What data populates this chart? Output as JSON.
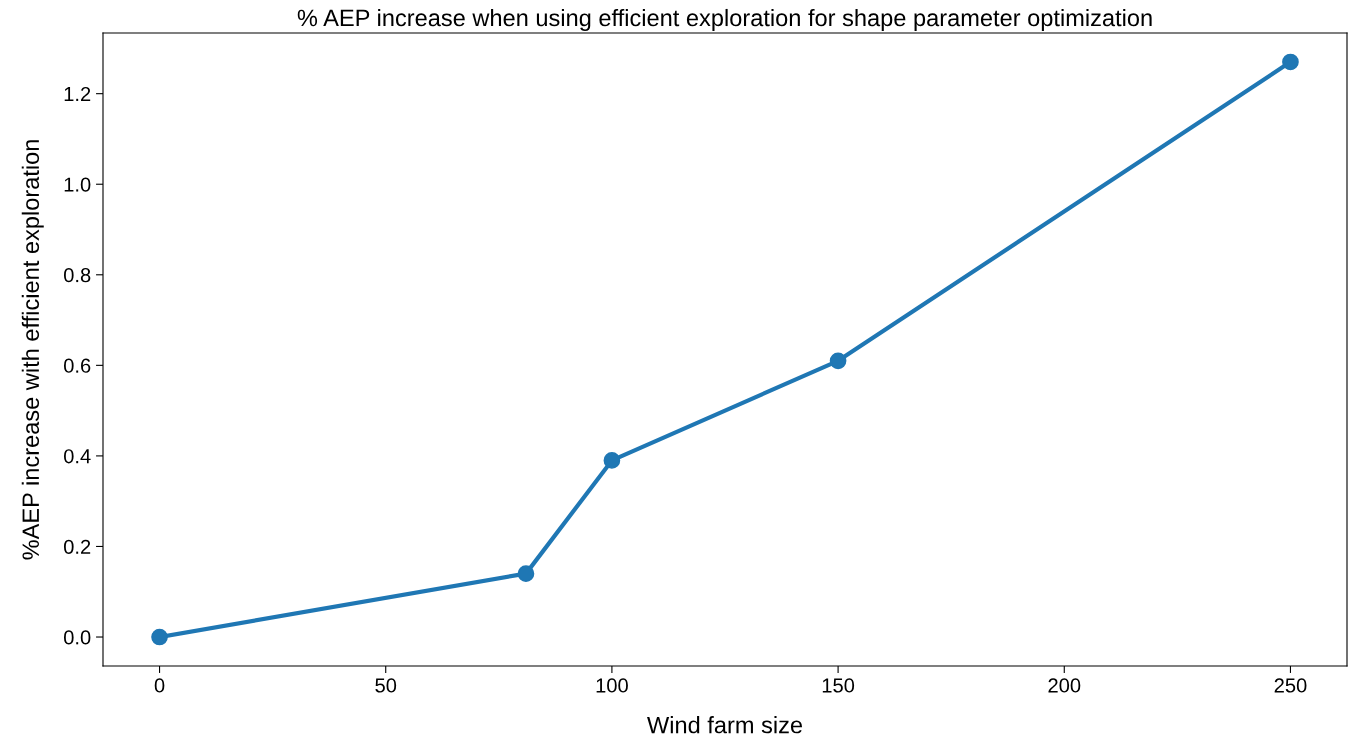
{
  "chart_data": {
    "type": "line",
    "title": "% AEP increase when using efficient exploration for shape parameter optimization",
    "xlabel": "Wind farm size",
    "ylabel": "%AEP increase with efficient exploration",
    "x": [
      0,
      81,
      100,
      150,
      250
    ],
    "series": [
      {
        "color": "#1f77b4",
        "values": [
          0,
          0.14,
          0.39,
          0.61,
          1.27
        ]
      }
    ],
    "xlim": [
      -12.5,
      262.5
    ],
    "xticks": [
      0,
      50,
      100,
      150,
      200,
      250
    ],
    "ylim": [
      -0.064,
      1.334
    ],
    "yticks": [
      {
        "value": 0,
        "label": "0.0"
      },
      0.2,
      0.4,
      0.6,
      0.8,
      {
        "value": 1,
        "label": "1.0"
      },
      1.2
    ],
    "grid": false,
    "marker": "circle",
    "line_style": "solid"
  }
}
